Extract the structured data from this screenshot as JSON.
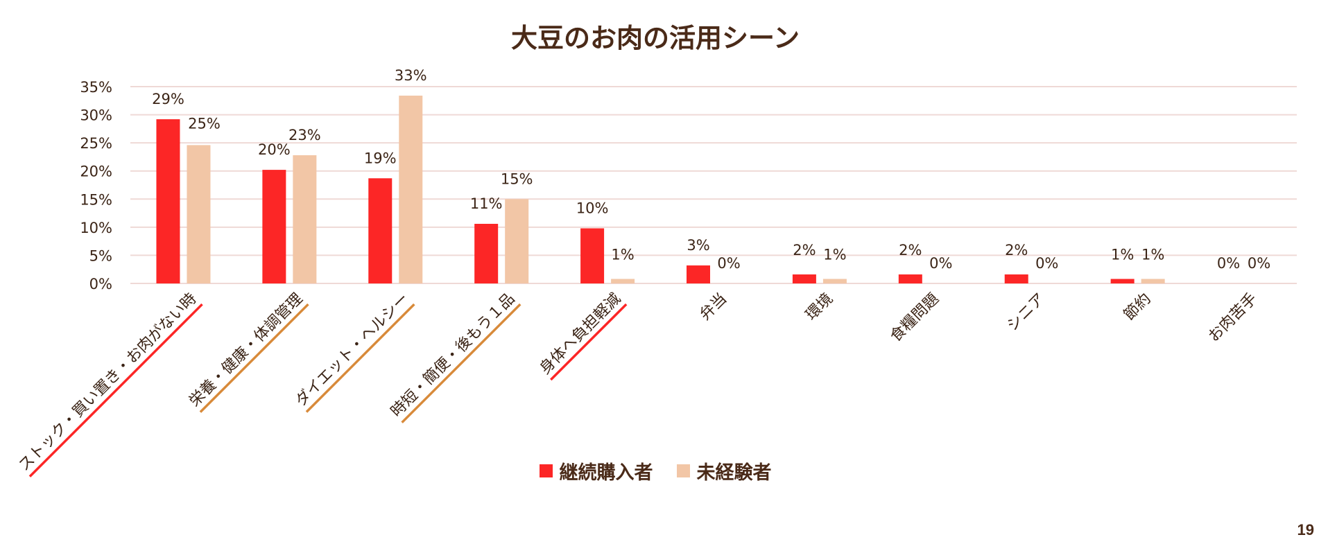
{
  "page_number": "19",
  "chart_data": {
    "type": "bar",
    "title": "大豆のお肉の活用シーン",
    "xlabel": "",
    "ylabel": "",
    "ylim": [
      0,
      35
    ],
    "yticks": [
      "0%",
      "5%",
      "10%",
      "15%",
      "20%",
      "25%",
      "30%",
      "35%"
    ],
    "grid": true,
    "legend_position": "bottom",
    "categories": [
      "ストック・買い置き・お肉がない時",
      "栄養・健康・体調管理",
      "ダイエット・ヘルシー",
      "時短・簡便・後もう１品",
      "身体へ負担軽減",
      "弁当",
      "環境",
      "食糧問題",
      "シニア",
      "節約",
      "お肉苦手"
    ],
    "underlines": [
      "red",
      "orange",
      "orange",
      "orange",
      "red",
      "none",
      "none",
      "none",
      "none",
      "none",
      "none"
    ],
    "colors": {
      "red": "#fc2626",
      "orange": "#d88a3a",
      "grid": "#efd9d6"
    },
    "series": [
      {
        "name": "継続購入者",
        "color": "#fc2626",
        "values": [
          29.2,
          20.2,
          18.7,
          10.6,
          9.8,
          3.2,
          1.6,
          1.6,
          1.6,
          0.8,
          0
        ],
        "labels": [
          "29%",
          "20%",
          "19%",
          "11%",
          "10%",
          "3%",
          "2%",
          "2%",
          "2%",
          "1%",
          "0%"
        ]
      },
      {
        "name": "未経験者",
        "color": "#f2c6a6",
        "values": [
          24.6,
          22.8,
          33.4,
          15.0,
          0.8,
          0,
          0.8,
          0,
          0,
          0.8,
          0
        ],
        "labels": [
          "25%",
          "23%",
          "33%",
          "15%",
          "1%",
          "0%",
          "1%",
          "0%",
          "0%",
          "1%",
          "0%"
        ]
      }
    ]
  }
}
